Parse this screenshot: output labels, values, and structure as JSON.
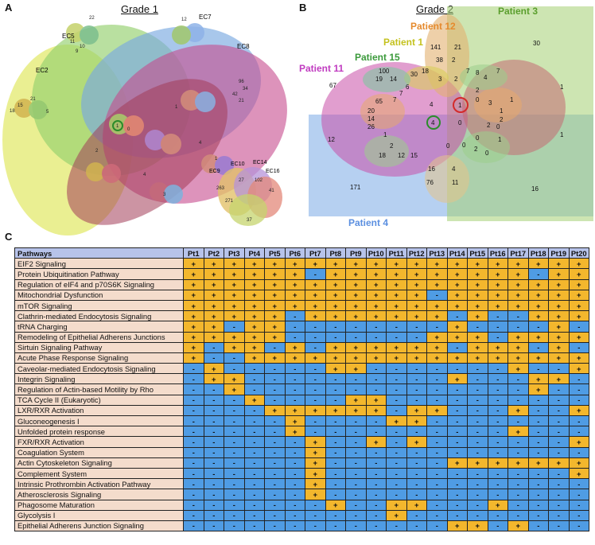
{
  "panel_a": {
    "letter": "A",
    "title": "Grade 1",
    "sets": [
      "EC2",
      "EC5",
      "EC7",
      "EC8",
      "EC10",
      "EC14",
      "EC9",
      "EC16"
    ],
    "numbers": [
      "21",
      "15",
      "18",
      "5",
      "9",
      "22",
      "10",
      "11",
      "12",
      "96",
      "34",
      "42",
      "21",
      "1",
      "0",
      "263",
      "27",
      "102",
      "41",
      "271",
      "37",
      "1",
      "4",
      "4",
      "2",
      "3",
      "1"
    ]
  },
  "panel_b": {
    "letter": "B",
    "title": "Grade 2",
    "patients": [
      {
        "name": "Patient 12",
        "color": "#e58a2d"
      },
      {
        "name": "Patient 3",
        "color": "#5a9e2c"
      },
      {
        "name": "Patient 1",
        "color": "#c4c21e"
      },
      {
        "name": "Patient 15",
        "color": "#3b9a3b"
      },
      {
        "name": "Patient 11",
        "color": "#c03bc0"
      },
      {
        "name": "Patient 4",
        "color": "#5b8fe0"
      }
    ],
    "numbers": [
      "141",
      "21",
      "38",
      "2",
      "18",
      "30",
      "100",
      "19",
      "14",
      "3",
      "2",
      "7",
      "8",
      "4",
      "7",
      "30",
      "67",
      "65",
      "7",
      "7",
      "6",
      "20",
      "14",
      "26",
      "4",
      "4",
      "0",
      "1",
      "2",
      "3",
      "1",
      "2",
      "1",
      "0",
      "2",
      "0",
      "12",
      "1",
      "1",
      "1",
      "2",
      "18",
      "12",
      "15",
      "0",
      "2",
      "0",
      "0",
      "0",
      "1",
      "16",
      "4",
      "76",
      "11",
      "171",
      "16"
    ]
  },
  "panel_c": {
    "letter": "C",
    "header_pathways": "Pathways",
    "columns": [
      "Pt1",
      "Pt2",
      "Pt3",
      "Pt4",
      "Pt5",
      "Pt6",
      "Pt7",
      "Pt8",
      "Pt9",
      "Pt10",
      "Pt11",
      "Pt12",
      "Pt13",
      "Pt14",
      "Pt15",
      "Pt16",
      "Pt17",
      "Pt18",
      "Pt19",
      "Pt20"
    ],
    "rows": [
      {
        "name": "EIF2 Signaling",
        "v": "++++++++++++++++++++"
      },
      {
        "name": "Protein Ubiquitination Pathway",
        "v": "++++++-++++++++++-++"
      },
      {
        "name": "Regulation of eIF4 and p70S6K Signaling",
        "v": "++++++++++++++++++++"
      },
      {
        "name": "Mitochondrial Dysfunction",
        "v": "++++++++++++-+++++++"
      },
      {
        "name": "mTOR Signaling",
        "v": "++++++++++++++++++++"
      },
      {
        "name": "Clathrin-mediated Endocytosis Signaling",
        "v": "+++++-+++++++-+--+++"
      },
      {
        "name": "tRNA Charging",
        "v": "++-++--------+----+-"
      },
      {
        "name": "Remodeling of Epithelial Adherens Junctions",
        "v": "+++++-------+++-++++"
      },
      {
        "name": "Sirtuin Signaling Pathway",
        "v": "+-++-+-++++++-+++-+-"
      },
      {
        "name": "Acute Phase Response Signaling",
        "v": "+--+++++++++++++++++"
      },
      {
        "name": "Caveolar-mediated Endocytosis Signaling",
        "v": "-+-----++-------+--+"
      },
      {
        "name": "Integrin Signaling",
        "v": "-++----------+---++-"
      },
      {
        "name": "Regulation of Actin-based Motility by Rho",
        "v": "--+--------------+--"
      },
      {
        "name": "TCA Cycle II (Eukaryotic)",
        "v": "---+----++----------"
      },
      {
        "name": "LXR/RXR Activation",
        "v": "----++++++-++---+--+"
      },
      {
        "name": "Gluconeogenesis I",
        "v": "-----+----++--------"
      },
      {
        "name": "Unfolded protein response",
        "v": "-----+----------+---"
      },
      {
        "name": "FXR/RXR Activation",
        "v": "------+--+-+-------+"
      },
      {
        "name": "Coagulation System",
        "v": "------+-------------"
      },
      {
        "name": "Actin Cytoskeleton Signaling",
        "v": "------+------+++++++"
      },
      {
        "name": "Complement System",
        "v": "------+------------+"
      },
      {
        "name": "Intrinsic Prothrombin Activation Pathway",
        "v": "------+-------------"
      },
      {
        "name": "Atherosclerosis Signaling",
        "v": "------+-------------"
      },
      {
        "name": "Phagosome Maturation",
        "v": "-------+--++---+----"
      },
      {
        "name": "Glycolysis I",
        "v": "----------+---------"
      },
      {
        "name": "Epithelial Adherens Junction Signaling",
        "v": "-------------++-+---"
      }
    ],
    "colors": {
      "plus": "#f3b72d",
      "minus": "#4f9ce4",
      "header": "#b7c3ea",
      "rowname": "#f4dccc"
    }
  }
}
